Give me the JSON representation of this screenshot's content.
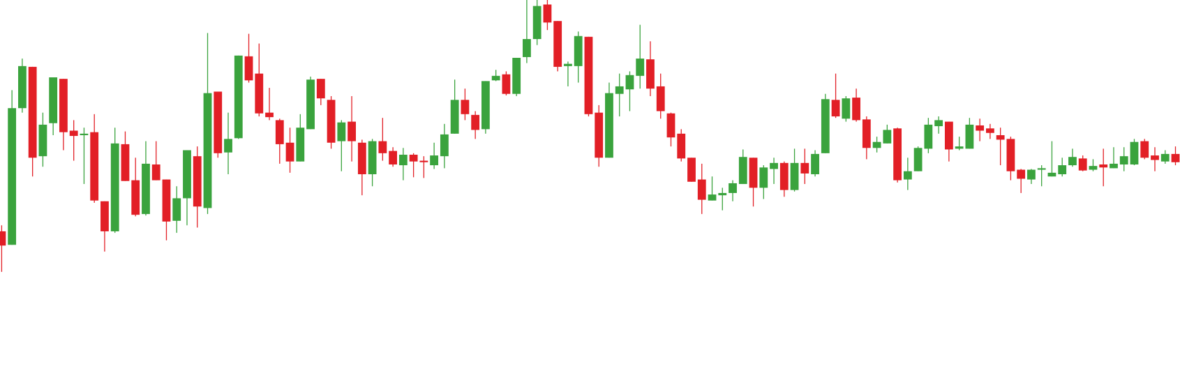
{
  "chart_data": {
    "type": "candlestick",
    "up_color": "#3aa33d",
    "down_color": "#e21f26",
    "grid": false,
    "ylim": [
      0,
      502
    ],
    "open": [
      194,
      176,
      358,
      413,
      294,
      338,
      397,
      328,
      322,
      326,
      234,
      194,
      310,
      262,
      217,
      283,
      263,
      208,
      238,
      294,
      225,
      380,
      299,
      318,
      427,
      404,
      352,
      342,
      312,
      287,
      330,
      397,
      369,
      314,
      340,
      312,
      270,
      314,
      301,
      282,
      296,
      288,
      282,
      294,
      324,
      369,
      349,
      330,
      395,
      403,
      377,
      426,
      450,
      496,
      474,
      414,
      414,
      453,
      352,
      292,
      377,
      383,
      401,
      423,
      387,
      351,
      324,
      292,
      263,
      235,
      242,
      245,
      257,
      292,
      252,
      277,
      285,
      249,
      285,
      270,
      298,
      369,
      344,
      372,
      343,
      305,
      311,
      331,
      263,
      274,
      304,
      334,
      340,
      304,
      304,
      335,
      331,
      322,
      317,
      276,
      263,
      276,
      267,
      270,
      282,
      291,
      276,
      283,
      278,
      283,
      283,
      314,
      295,
      287,
      297
    ],
    "high": [
      202,
      382,
      424,
      413,
      352,
      399,
      397,
      342,
      332,
      350,
      234,
      332,
      327,
      292,
      314,
      314,
      263,
      254,
      302,
      307,
      458,
      380,
      352,
      428,
      457,
      444,
      385,
      344,
      332,
      350,
      400,
      397,
      374,
      342,
      374,
      316,
      317,
      345,
      306,
      305,
      298,
      294,
      312,
      337,
      396,
      384,
      354,
      394,
      409,
      407,
      425,
      502,
      502,
      502,
      474,
      420,
      460,
      453,
      362,
      392,
      404,
      407,
      469,
      447,
      404,
      352,
      330,
      292,
      284,
      267,
      252,
      262,
      303,
      292,
      282,
      292,
      287,
      304,
      304,
      302,
      377,
      404,
      374,
      384,
      347,
      320,
      336,
      332,
      292,
      307,
      345,
      347,
      340,
      320,
      345,
      344,
      337,
      332,
      320,
      277,
      277,
      282,
      314,
      292,
      304,
      295,
      290,
      304,
      306,
      306,
      317,
      317,
      306,
      302,
      307
    ],
    "low": [
      140,
      176,
      352,
      267,
      280,
      322,
      302,
      288,
      257,
      232,
      167,
      192,
      261,
      214,
      215,
      262,
      182,
      192,
      202,
      199,
      217,
      292,
      270,
      317,
      392,
      347,
      342,
      284,
      272,
      287,
      330,
      362,
      304,
      274,
      287,
      242,
      254,
      288,
      280,
      262,
      266,
      265,
      277,
      278,
      324,
      342,
      317,
      324,
      394,
      375,
      374,
      418,
      442,
      462,
      407,
      387,
      392,
      347,
      280,
      292,
      347,
      354,
      384,
      374,
      344,
      307,
      287,
      260,
      217,
      235,
      222,
      234,
      257,
      227,
      237,
      257,
      240,
      247,
      257,
      267,
      298,
      345,
      340,
      340,
      290,
      299,
      311,
      259,
      249,
      274,
      298,
      324,
      287,
      302,
      304,
      314,
      317,
      282,
      262,
      245,
      257,
      254,
      267,
      267,
      280,
      274,
      274,
      254,
      278,
      274,
      282,
      290,
      274,
      284,
      282
    ],
    "close": [
      175,
      358,
      414,
      292,
      336,
      399,
      326,
      321,
      324,
      235,
      194,
      311,
      261,
      216,
      284,
      262,
      207,
      238,
      302,
      227,
      378,
      298,
      317,
      428,
      395,
      351,
      346,
      310,
      287,
      332,
      396,
      371,
      312,
      339,
      314,
      270,
      314,
      298,
      283,
      296,
      287,
      286,
      295,
      323,
      369,
      350,
      329,
      394,
      401,
      377,
      425,
      450,
      494,
      472,
      413,
      417,
      454,
      350,
      292,
      378,
      387,
      402,
      424,
      384,
      354,
      319,
      291,
      260,
      236,
      243,
      245,
      258,
      293,
      252,
      279,
      285,
      249,
      285,
      271,
      297,
      370,
      347,
      371,
      342,
      305,
      313,
      329,
      262,
      274,
      305,
      336,
      342,
      303,
      307,
      336,
      328,
      325,
      316,
      274,
      264,
      276,
      278,
      272,
      282,
      293,
      275,
      281,
      279,
      284,
      294,
      313,
      292,
      289,
      297,
      286
    ]
  }
}
